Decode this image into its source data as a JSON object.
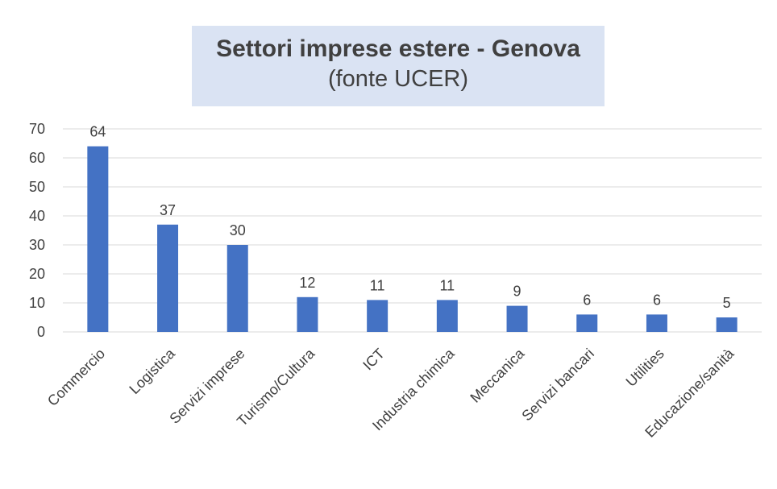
{
  "chart_data": {
    "type": "bar",
    "title": "Settori imprese estere  - Genova",
    "subtitle": "(fonte UCER)",
    "categories": [
      "Commercio",
      "Logistica",
      "Servizi imprese",
      "Turismo/Cultura",
      "ICT",
      "Industria chimica",
      "Meccanica",
      "Servizi bancari",
      "Utilities",
      "Educazione/sanità"
    ],
    "values": [
      64,
      37,
      30,
      12,
      11,
      11,
      9,
      6,
      6,
      5
    ],
    "ylim": [
      0,
      70
    ],
    "yticks": [
      0,
      10,
      20,
      30,
      40,
      50,
      60,
      70
    ],
    "grid": true,
    "data_labels": true,
    "colors": {
      "bar": "#4472c4",
      "grid": "#d9d9d9",
      "title_box": "#dae3f3"
    }
  }
}
